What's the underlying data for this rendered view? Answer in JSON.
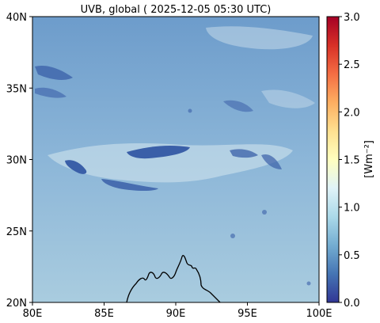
{
  "title": "UVB, global ( 2025-12-05 05:30 UTC)",
  "map": {
    "lon_range": [
      80,
      100
    ],
    "lat_range": [
      20,
      40
    ],
    "lon_ticks": [
      {
        "value": 80,
        "label": "80E"
      },
      {
        "value": 85,
        "label": "85E"
      },
      {
        "value": 90,
        "label": "90E"
      },
      {
        "value": 95,
        "label": "95E"
      },
      {
        "value": 100,
        "label": "100E"
      }
    ],
    "lat_ticks": [
      {
        "value": 20,
        "label": "20N"
      },
      {
        "value": 25,
        "label": "25N"
      },
      {
        "value": 30,
        "label": "30N"
      },
      {
        "value": 35,
        "label": "35N"
      },
      {
        "value": 40,
        "label": "40N"
      }
    ],
    "field_colors": {
      "south": "#a9ccdf",
      "mid": "#8cb6d8",
      "north": "#6d9ccb",
      "cloud_dark": "#3a5fa8",
      "cloud_light": "#d6e7ef"
    },
    "coastline_color": "#000000"
  },
  "colorbar": {
    "label": "[Wm⁻²]",
    "range": [
      0.0,
      3.0
    ],
    "ticks": [
      "0.0",
      "0.5",
      "1.0",
      "1.5",
      "2.0",
      "2.5",
      "3.0"
    ],
    "colormap": "RdYlBu_r",
    "stops": [
      "#313695",
      "#4575b4",
      "#74add1",
      "#abd9e9",
      "#e0f3f8",
      "#ffffbf",
      "#fee090",
      "#fdae61",
      "#f46d43",
      "#d73027",
      "#a50026"
    ]
  }
}
